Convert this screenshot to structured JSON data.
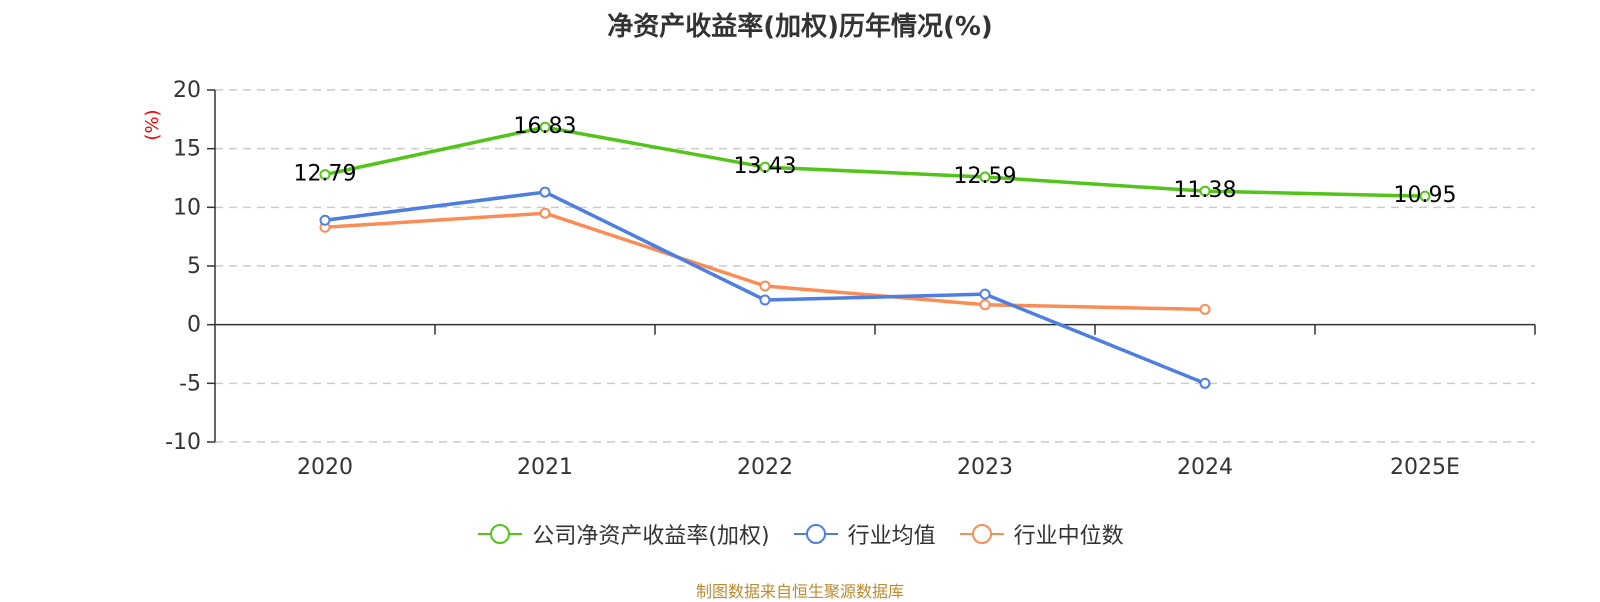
{
  "chart_data": {
    "type": "line",
    "title": "净资产收益率(加权)历年情况(%)",
    "ylabel": "(%)",
    "xlabel": "",
    "categories": [
      "2020",
      "2021",
      "2022",
      "2023",
      "2024",
      "2025E"
    ],
    "ylim": [
      -10,
      20
    ],
    "yticks": [
      20,
      15,
      10,
      5,
      0,
      -5,
      -10
    ],
    "grid": true,
    "legend_position": "bottom",
    "series": [
      {
        "name": "公司净资产收益率(加权)",
        "color": "#52c41a",
        "values": [
          12.79,
          16.83,
          13.43,
          12.59,
          11.38,
          10.95
        ],
        "labels": [
          "12.79",
          "16.83",
          "13.43",
          "12.59",
          "11.38",
          "10.95"
        ]
      },
      {
        "name": "行业均值",
        "color": "#4e7fe0",
        "values": [
          8.9,
          11.3,
          2.1,
          2.6,
          -5.0,
          null
        ]
      },
      {
        "name": "行业中位数",
        "color": "#fa8c55",
        "values": [
          8.3,
          9.5,
          3.3,
          1.7,
          1.3,
          null
        ]
      }
    ]
  },
  "footer": "制图数据来自恒生聚源数据库"
}
